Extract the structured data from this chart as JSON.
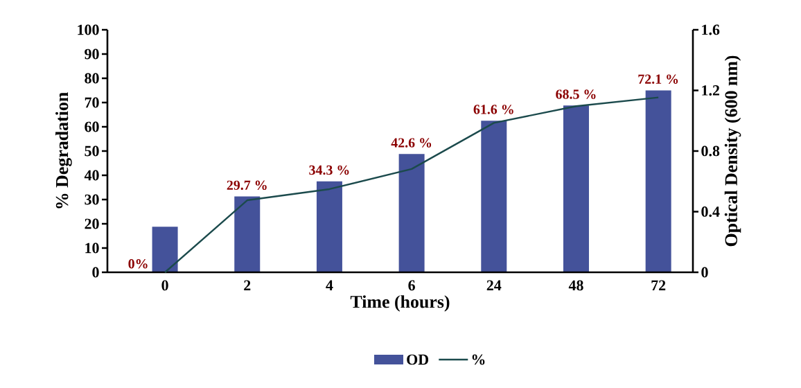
{
  "chart_data": {
    "type": "bar",
    "xlabel": "Time (hours)",
    "ylabel": "% Degradation",
    "y2label": "Optical Density (600 nm)",
    "categories": [
      "0",
      "2",
      "4",
      "6",
      "24",
      "48",
      "72"
    ],
    "series": [
      {
        "name": "OD",
        "axis": "y2",
        "color": "#44529a",
        "values": [
          0.3,
          0.5,
          0.6,
          0.78,
          1.0,
          1.1,
          1.2
        ]
      },
      {
        "name": "%",
        "type": "line",
        "color": "#1b4a4c",
        "values": [
          0,
          29.7,
          34.3,
          42.6,
          61.6,
          68.5,
          72.1
        ],
        "value_labels": [
          "0%",
          "29.7 %",
          "34.3 %",
          "42.6 %",
          "61.6 %",
          "68.5 %",
          "72.1 %"
        ]
      }
    ],
    "ylim": [
      0,
      100
    ],
    "yticks": [
      0,
      10,
      20,
      30,
      40,
      50,
      60,
      70,
      80,
      90,
      100
    ],
    "y2lim": [
      0,
      1.6
    ],
    "y2ticks": [
      0,
      0.4,
      0.8,
      1.2,
      1.6
    ],
    "legend": "bottom"
  }
}
